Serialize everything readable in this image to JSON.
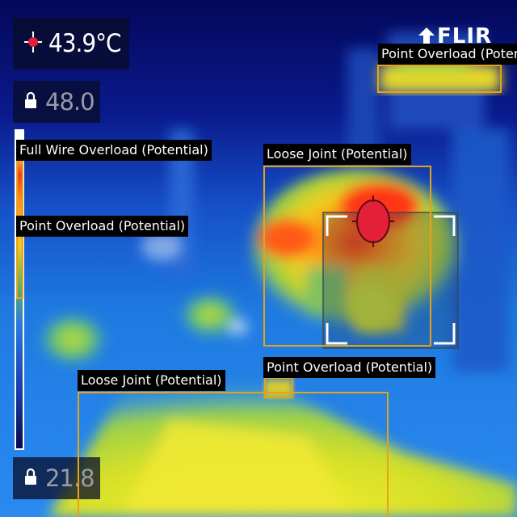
{
  "camera": {
    "brand": "FLIR",
    "spot_temperature": "43.9°C",
    "scale_max": "48.0",
    "scale_min": "21.8",
    "spot_icon": "crosshair-spot-icon",
    "lock_icon": "lock-icon"
  },
  "detections": [
    {
      "label": "Point Overload (Potential)"
    },
    {
      "label": "Full Wire Overload (Potential)"
    },
    {
      "label": "Loose Joint (Potential)"
    },
    {
      "label": "Point Overload (Potential)"
    },
    {
      "label": "Point Overload (Potential)"
    },
    {
      "label": "Loose Joint (Potential)"
    }
  ],
  "colors": {
    "box": "#e6a319",
    "label_bg": "#000000",
    "hot": "#e3203a",
    "background": "#061060"
  }
}
